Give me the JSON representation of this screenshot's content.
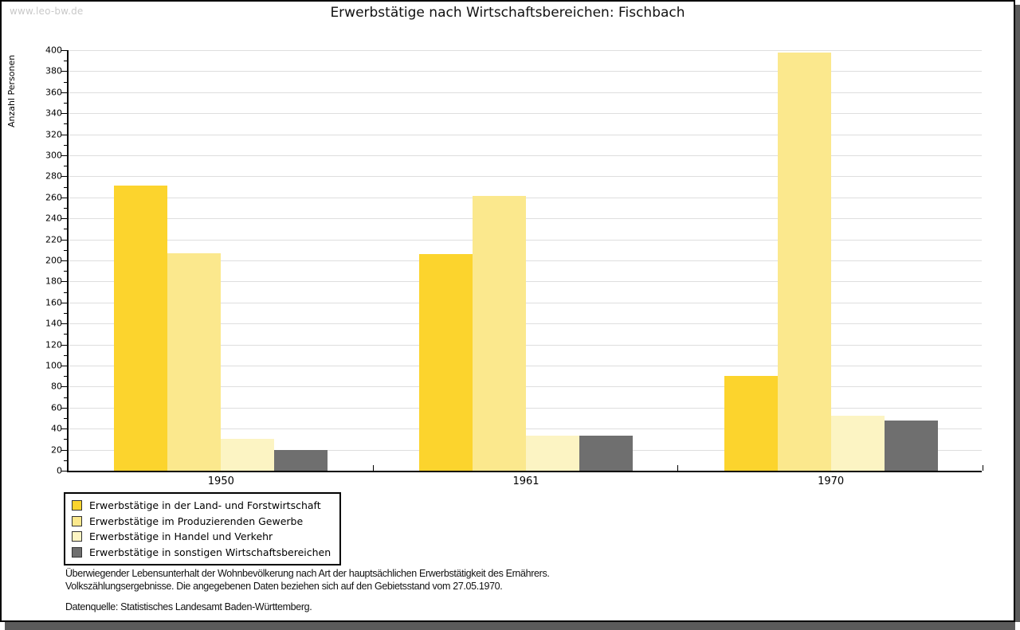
{
  "watermark": "www.leo-bw.de",
  "footnote": {
    "line1": "Überwiegender Lebensunterhalt der Wohnbevölkerung nach Art der hauptsächlichen Erwerbstätigkeit des Ernährers.",
    "line2": "Volkszählungsergebnisse. Die angegebenen Daten beziehen sich auf den Gebietsstand vom 27.05.1970.",
    "source": "Datenquelle: Statistisches Landesamt Baden-Württemberg."
  },
  "chart_data": {
    "type": "bar",
    "title": "Erwerbstätige nach Wirtschaftsbereichen: Fischbach",
    "xlabel": "",
    "ylabel": "Anzahl Personen",
    "categories": [
      "1950",
      "1961",
      "1970"
    ],
    "series": [
      {
        "name": "Erwerbstätige in der Land- und Forstwirtschaft",
        "color": "#FCD42D",
        "values": [
          271,
          206,
          90
        ]
      },
      {
        "name": "Erwerbstätige im Produzierenden Gewerbe",
        "color": "#FBE88D",
        "values": [
          207,
          261,
          398
        ]
      },
      {
        "name": "Erwerbstätige in Handel und Verkehr",
        "color": "#FCF4C3",
        "values": [
          30,
          33,
          52
        ]
      },
      {
        "name": "Erwerbstätige in sonstigen Wirtschaftsbereichen",
        "color": "#6F6F6F",
        "values": [
          20,
          33,
          48
        ]
      }
    ],
    "ylim": [
      0,
      400
    ],
    "ytick_step": 20,
    "minor_tick_step": 10,
    "grid": true,
    "legend_position": "bottom-left",
    "axis_color": "#000000",
    "grid_color": "#dedede"
  }
}
